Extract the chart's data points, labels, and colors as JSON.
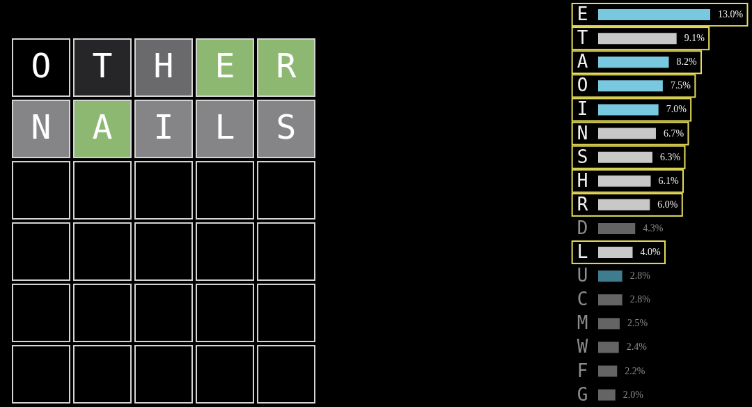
{
  "chart_data": [
    {
      "type": "other",
      "annotations": [
        "O",
        "T",
        "H",
        "E",
        "R",
        "N",
        "A",
        "I",
        "L",
        "S"
      ],
      "colors": [
        "#000000",
        "#262628",
        "#6a6a6c",
        "#8db872",
        "#8db872",
        "#858587",
        "#8db872",
        "#858587",
        "#858587",
        "#858587",
        "#000000",
        "#000000",
        "#000000",
        "#000000",
        "#000000",
        "#000000",
        "#000000",
        "#000000",
        "#000000",
        "#000000",
        "#000000",
        "#000000",
        "#000000",
        "#000000",
        "#000000",
        "#000000",
        "#000000",
        "#000000",
        "#000000",
        "#000000"
      ]
    },
    {
      "type": "bar",
      "orientation": "horizontal",
      "categories": [
        "E",
        "T",
        "A",
        "O",
        "I",
        "N",
        "S",
        "H",
        "R",
        "D",
        "L",
        "U",
        "C",
        "M",
        "W",
        "F",
        "G"
      ],
      "values": [
        13.0,
        9.1,
        8.2,
        7.5,
        7.0,
        6.7,
        6.3,
        6.1,
        6.0,
        4.3,
        4.0,
        2.8,
        2.8,
        2.5,
        2.4,
        2.2,
        2.0
      ],
      "value_labels": [
        "13.0%",
        "9.1%",
        "8.2%",
        "7.5%",
        "7.0%",
        "6.7%",
        "6.3%",
        "6.1%",
        "6.0%",
        "4.3%",
        "4.0%",
        "2.8%",
        "2.8%",
        "2.5%",
        "2.4%",
        "2.2%",
        "2.0%"
      ],
      "colors": [
        "#78c8e0",
        "#c8c8c8",
        "#78c8e0",
        "#78c8e0",
        "#78c8e0",
        "#c8c8c8",
        "#c8c8c8",
        "#c8c8c8",
        "#c8c8c8",
        "#646464",
        "#c8c8c8",
        "#3e7c8e",
        "#646464",
        "#646464",
        "#646464",
        "#646464",
        "#646464"
      ]
    }
  ]
}
